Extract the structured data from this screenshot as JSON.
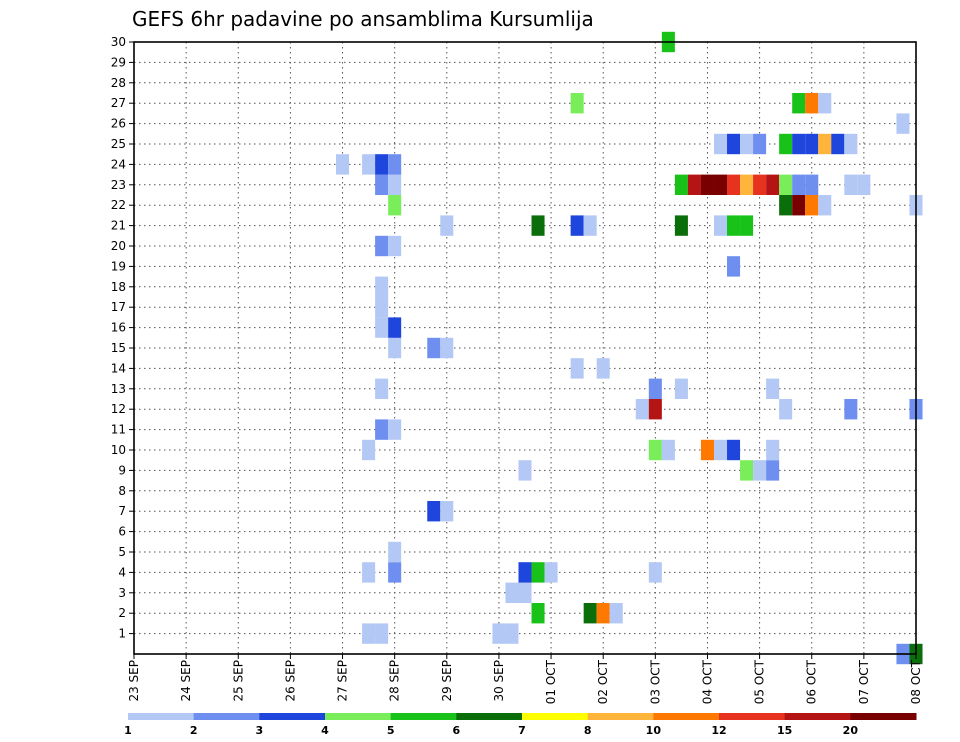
{
  "chart_data": {
    "type": "heatmap",
    "title": "GEFS 6hr padavine po ansamblima Kursumlija",
    "xlabel": "",
    "ylabel": "",
    "x_ticks": [
      "23 SEP",
      "24 SEP",
      "25 SEP",
      "26 SEP",
      "27 SEP",
      "28 SEP",
      "29 SEP",
      "30 SEP",
      "01 OCT",
      "02 OCT",
      "03 OCT",
      "04 OCT",
      "05 OCT",
      "06 OCT",
      "07 OCT",
      "08 OCT"
    ],
    "y_ticks": [
      "1",
      "2",
      "3",
      "4",
      "5",
      "6",
      "7",
      "8",
      "9",
      "10",
      "11",
      "12",
      "13",
      "14",
      "15",
      "16",
      "17",
      "18",
      "19",
      "20",
      "21",
      "22",
      "23",
      "24",
      "25",
      "26",
      "27",
      "28",
      "29",
      "30"
    ],
    "xlim_days": [
      0,
      15
    ],
    "ylim_members": [
      0,
      30
    ],
    "grid": true,
    "legend_placement": "bottom",
    "colorbar": {
      "colors": [
        "#b4c8f5",
        "#6e8ef0",
        "#1e46dc",
        "#7aee5a",
        "#18c218",
        "#0a6e0a",
        "#ffff00",
        "#ffb43c",
        "#ff7800",
        "#e6321e",
        "#b41414",
        "#780000"
      ],
      "labels": [
        "1",
        "2",
        "3",
        "4",
        "5",
        "6",
        "7",
        "8",
        "10",
        "12",
        "15",
        "20"
      ]
    },
    "cells_format": "[day_offset_from_23_SEP_00z, member, color_index]",
    "cells": [
      [
        4.5,
        1,
        0
      ],
      [
        4.75,
        1,
        0
      ],
      [
        7.0,
        1,
        0
      ],
      [
        7.25,
        1,
        0
      ],
      [
        7.75,
        2,
        4
      ],
      [
        8.75,
        2,
        5
      ],
      [
        9.0,
        2,
        8
      ],
      [
        9.25,
        2,
        0
      ],
      [
        7.25,
        3,
        0
      ],
      [
        7.5,
        3,
        0
      ],
      [
        4.5,
        4,
        0
      ],
      [
        5.0,
        4,
        1
      ],
      [
        7.5,
        4,
        2
      ],
      [
        7.75,
        4,
        4
      ],
      [
        8.0,
        4,
        0
      ],
      [
        10.0,
        4,
        0
      ],
      [
        5.0,
        5,
        0
      ],
      [
        5.75,
        7,
        2
      ],
      [
        6.0,
        7,
        0
      ],
      [
        7.5,
        9,
        0
      ],
      [
        11.75,
        9,
        3
      ],
      [
        12.0,
        9,
        0
      ],
      [
        12.25,
        9,
        1
      ],
      [
        4.5,
        10,
        0
      ],
      [
        10.0,
        10,
        3
      ],
      [
        10.25,
        10,
        0
      ],
      [
        11.0,
        10,
        8
      ],
      [
        11.25,
        10,
        0
      ],
      [
        11.5,
        10,
        2
      ],
      [
        12.25,
        10,
        0
      ],
      [
        4.75,
        11,
        1
      ],
      [
        5.0,
        11,
        0
      ],
      [
        9.75,
        12,
        0
      ],
      [
        10.0,
        12,
        10
      ],
      [
        12.5,
        12,
        0
      ],
      [
        13.75,
        12,
        1
      ],
      [
        15.0,
        12,
        1
      ],
      [
        4.75,
        13,
        0
      ],
      [
        10.0,
        13,
        1
      ],
      [
        10.5,
        13,
        0
      ],
      [
        12.25,
        13,
        0
      ],
      [
        8.5,
        14,
        0
      ],
      [
        9.0,
        14,
        0
      ],
      [
        5.0,
        15,
        0
      ],
      [
        5.75,
        15,
        1
      ],
      [
        6.0,
        15,
        0
      ],
      [
        4.75,
        16,
        0
      ],
      [
        5.0,
        16,
        2
      ],
      [
        4.75,
        17,
        0
      ],
      [
        4.75,
        18,
        0
      ],
      [
        11.5,
        19,
        1
      ],
      [
        4.75,
        20,
        1
      ],
      [
        5.0,
        20,
        0
      ],
      [
        6.0,
        21,
        0
      ],
      [
        7.75,
        21,
        5
      ],
      [
        8.5,
        21,
        2
      ],
      [
        8.75,
        21,
        0
      ],
      [
        10.5,
        21,
        5
      ],
      [
        11.25,
        21,
        0
      ],
      [
        11.5,
        21,
        4
      ],
      [
        11.75,
        21,
        4
      ],
      [
        5.0,
        22,
        3
      ],
      [
        12.5,
        22,
        5
      ],
      [
        12.75,
        22,
        11
      ],
      [
        13.0,
        22,
        8
      ],
      [
        13.25,
        22,
        0
      ],
      [
        15.0,
        22,
        0
      ],
      [
        4.75,
        23,
        1
      ],
      [
        5.0,
        23,
        0
      ],
      [
        10.5,
        23,
        4
      ],
      [
        10.75,
        23,
        10
      ],
      [
        11.0,
        23,
        11
      ],
      [
        11.25,
        23,
        11
      ],
      [
        11.5,
        23,
        9
      ],
      [
        11.75,
        23,
        7
      ],
      [
        12.0,
        23,
        9
      ],
      [
        12.25,
        23,
        10
      ],
      [
        12.5,
        23,
        3
      ],
      [
        12.75,
        23,
        1
      ],
      [
        13.0,
        23,
        1
      ],
      [
        13.75,
        23,
        0
      ],
      [
        14.0,
        23,
        0
      ],
      [
        4.0,
        24,
        0
      ],
      [
        4.5,
        24,
        0
      ],
      [
        4.75,
        24,
        2
      ],
      [
        5.0,
        24,
        1
      ],
      [
        11.25,
        25,
        0
      ],
      [
        11.5,
        25,
        2
      ],
      [
        11.75,
        25,
        0
      ],
      [
        12.0,
        25,
        1
      ],
      [
        12.5,
        25,
        4
      ],
      [
        12.75,
        25,
        2
      ],
      [
        13.0,
        25,
        2
      ],
      [
        13.25,
        25,
        7
      ],
      [
        13.5,
        25,
        2
      ],
      [
        13.75,
        25,
        0
      ],
      [
        14.75,
        26,
        0
      ],
      [
        8.5,
        27,
        3
      ],
      [
        12.75,
        27,
        4
      ],
      [
        13.0,
        27,
        8
      ],
      [
        13.25,
        27,
        0
      ],
      [
        10.25,
        30,
        4
      ],
      [
        14.75,
        0,
        1
      ],
      [
        15.0,
        0,
        5
      ]
    ]
  }
}
